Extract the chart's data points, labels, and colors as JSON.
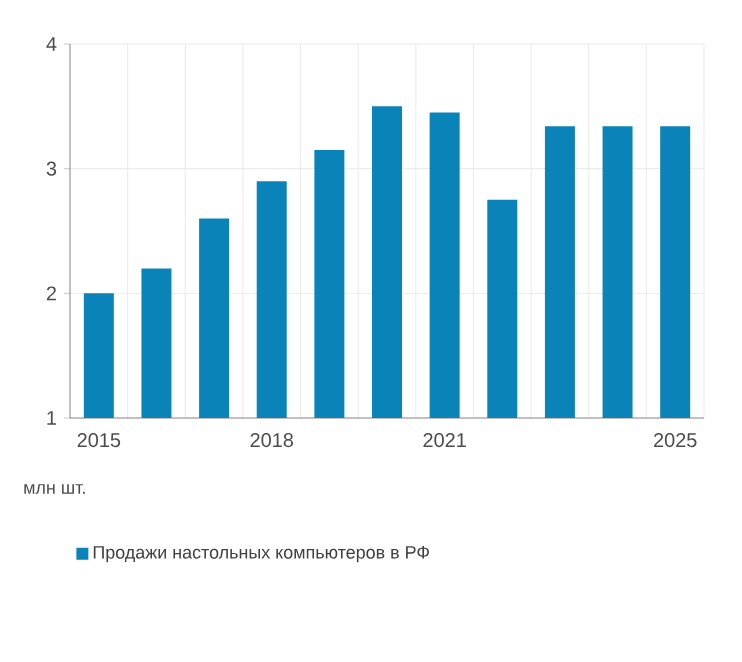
{
  "chart_data": {
    "type": "bar",
    "ylabel": "млн шт.",
    "categories": [
      "2015",
      null,
      null,
      "2018",
      null,
      null,
      "2021",
      null,
      null,
      null,
      "2025"
    ],
    "series": [
      {
        "name": "Продажи настольных компьютеров в РФ",
        "color": "#0a84b8",
        "values": [
          2.0,
          2.2,
          2.6,
          2.9,
          3.15,
          3.5,
          3.45,
          2.75,
          3.34,
          3.34,
          3.34
        ]
      }
    ],
    "ylim": [
      1,
      4
    ],
    "yticks": [
      1,
      2,
      3,
      4
    ],
    "grid": true,
    "legend": "bottom"
  }
}
